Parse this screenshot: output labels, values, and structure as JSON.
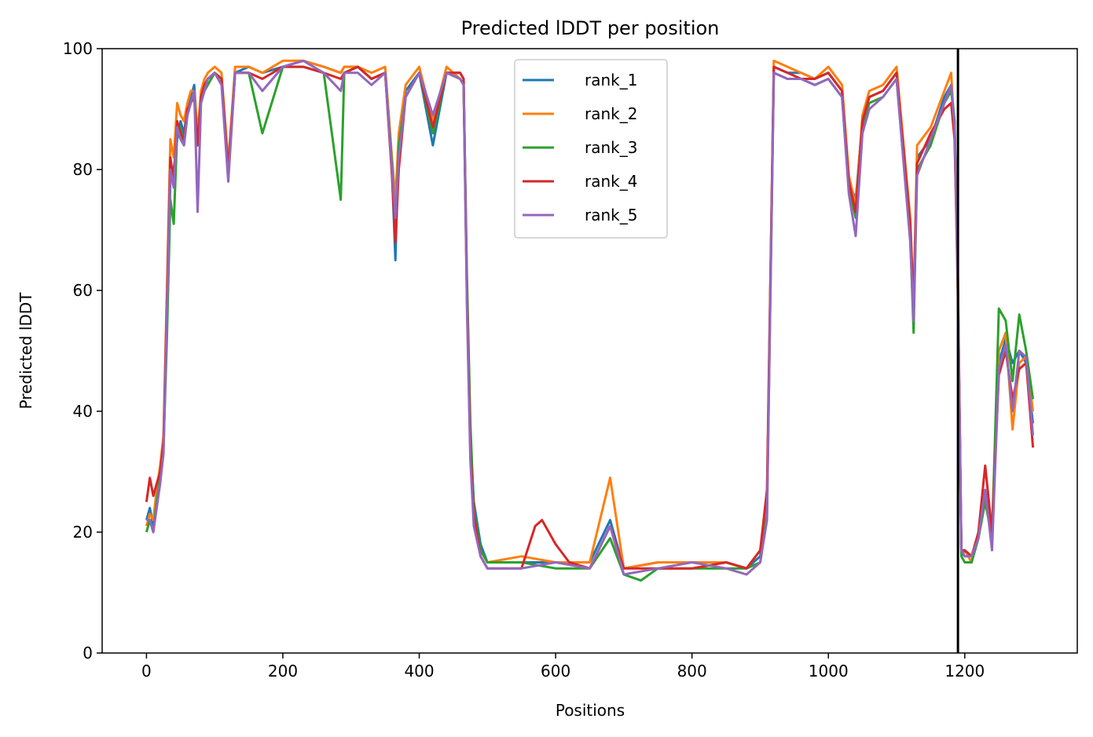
{
  "chart_data": {
    "type": "line",
    "title": "Predicted lDDT per position",
    "xlabel": "Positions",
    "ylabel": "Predicted lDDT",
    "xlim": [
      -65,
      1365
    ],
    "ylim": [
      0,
      100
    ],
    "xticks": [
      0,
      200,
      400,
      600,
      800,
      1000,
      1200
    ],
    "yticks": [
      0,
      20,
      40,
      60,
      80,
      100
    ],
    "grid": false,
    "legend_position": "top-center",
    "chain_break": 1190,
    "series": [
      {
        "name": "rank_1",
        "color": "#1f77b4",
        "x": [
          0,
          5,
          10,
          15,
          20,
          25,
          30,
          35,
          40,
          45,
          50,
          55,
          60,
          65,
          70,
          75,
          80,
          85,
          90,
          100,
          110,
          120,
          130,
          150,
          170,
          200,
          230,
          260,
          285,
          290,
          310,
          330,
          350,
          360,
          365,
          370,
          380,
          400,
          420,
          440,
          460,
          465,
          470,
          475,
          480,
          490,
          500,
          550,
          600,
          650,
          680,
          700,
          750,
          800,
          850,
          880,
          900,
          910,
          920,
          940,
          960,
          980,
          1000,
          1020,
          1030,
          1040,
          1050,
          1060,
          1080,
          1100,
          1120,
          1125,
          1130,
          1150,
          1170,
          1180,
          1185,
          1190,
          1195,
          1200,
          1210,
          1220,
          1230,
          1240,
          1250,
          1260,
          1270,
          1280,
          1290,
          1300
        ],
        "y": [
          22,
          24,
          21,
          26,
          30,
          35,
          55,
          78,
          80,
          85,
          88,
          86,
          90,
          92,
          94,
          85,
          92,
          94,
          95,
          96,
          95,
          80,
          96,
          97,
          96,
          97,
          98,
          97,
          96,
          97,
          97,
          95,
          96,
          80,
          65,
          85,
          93,
          96,
          84,
          96,
          96,
          95,
          60,
          35,
          25,
          18,
          15,
          15,
          15,
          15,
          22,
          14,
          15,
          15,
          15,
          14,
          16,
          25,
          97,
          96,
          96,
          95,
          96,
          93,
          78,
          75,
          88,
          92,
          93,
          96,
          70,
          56,
          82,
          85,
          92,
          94,
          88,
          60,
          16,
          17,
          16,
          19,
          26,
          20,
          48,
          52,
          48,
          50,
          48,
          38
        ]
      },
      {
        "name": "rank_2",
        "color": "#ff7f0e",
        "x": [
          0,
          5,
          10,
          15,
          20,
          25,
          30,
          35,
          40,
          45,
          50,
          55,
          60,
          65,
          70,
          75,
          80,
          85,
          90,
          100,
          110,
          120,
          130,
          150,
          170,
          200,
          230,
          260,
          285,
          290,
          310,
          330,
          350,
          360,
          365,
          370,
          380,
          400,
          420,
          440,
          460,
          465,
          470,
          475,
          480,
          490,
          500,
          550,
          600,
          650,
          680,
          700,
          750,
          800,
          850,
          880,
          900,
          910,
          920,
          940,
          960,
          980,
          1000,
          1020,
          1030,
          1040,
          1050,
          1060,
          1080,
          1100,
          1120,
          1125,
          1130,
          1150,
          1170,
          1180,
          1185,
          1190,
          1195,
          1200,
          1210,
          1220,
          1230,
          1240,
          1250,
          1260,
          1270,
          1280,
          1290,
          1300
        ],
        "y": [
          21,
          23,
          22,
          27,
          31,
          36,
          60,
          85,
          82,
          91,
          89,
          88,
          91,
          93,
          93,
          86,
          93,
          95,
          96,
          97,
          96,
          81,
          97,
          97,
          96,
          98,
          98,
          97,
          96,
          97,
          97,
          96,
          97,
          82,
          75,
          86,
          94,
          97,
          88,
          97,
          95,
          94,
          58,
          33,
          22,
          17,
          15,
          16,
          15,
          15,
          29,
          14,
          15,
          15,
          15,
          14,
          17,
          24,
          98,
          97,
          96,
          95,
          97,
          94,
          79,
          74,
          89,
          93,
          94,
          97,
          72,
          58,
          84,
          87,
          93,
          96,
          86,
          58,
          17,
          17,
          15,
          20,
          27,
          21,
          50,
          53,
          37,
          48,
          49,
          40
        ]
      },
      {
        "name": "rank_3",
        "color": "#2ca02c",
        "x": [
          0,
          5,
          10,
          15,
          20,
          25,
          30,
          35,
          40,
          45,
          50,
          55,
          60,
          65,
          70,
          75,
          80,
          85,
          90,
          100,
          110,
          120,
          130,
          150,
          170,
          200,
          230,
          260,
          285,
          290,
          310,
          330,
          350,
          360,
          365,
          370,
          380,
          400,
          420,
          440,
          460,
          465,
          470,
          475,
          480,
          490,
          500,
          550,
          600,
          650,
          680,
          700,
          725,
          750,
          800,
          850,
          880,
          900,
          910,
          920,
          940,
          960,
          980,
          1000,
          1020,
          1030,
          1040,
          1050,
          1060,
          1080,
          1100,
          1120,
          1125,
          1130,
          1150,
          1170,
          1180,
          1185,
          1190,
          1195,
          1200,
          1210,
          1220,
          1230,
          1240,
          1250,
          1260,
          1270,
          1280,
          1290,
          1300
        ],
        "y": [
          20,
          22,
          20,
          25,
          29,
          34,
          52,
          75,
          71,
          86,
          87,
          84,
          89,
          91,
          92,
          84,
          91,
          93,
          94,
          96,
          95,
          79,
          96,
          96,
          86,
          97,
          97,
          96,
          75,
          96,
          97,
          95,
          96,
          81,
          70,
          84,
          92,
          96,
          86,
          96,
          95,
          94,
          62,
          38,
          24,
          17,
          15,
          15,
          14,
          14,
          19,
          13,
          12,
          14,
          14,
          14,
          14,
          15,
          23,
          96,
          95,
          95,
          94,
          95,
          92,
          77,
          72,
          87,
          91,
          92,
          95,
          69,
          53,
          80,
          84,
          91,
          93,
          88,
          60,
          16,
          15,
          15,
          19,
          25,
          19,
          57,
          55,
          45,
          56,
          50,
          42
        ]
      },
      {
        "name": "rank_4",
        "color": "#d62728",
        "x": [
          0,
          5,
          10,
          15,
          20,
          25,
          30,
          35,
          40,
          45,
          50,
          55,
          60,
          65,
          70,
          75,
          80,
          85,
          90,
          100,
          110,
          120,
          130,
          150,
          170,
          200,
          230,
          260,
          285,
          290,
          310,
          330,
          350,
          360,
          365,
          370,
          380,
          400,
          420,
          440,
          460,
          465,
          470,
          475,
          480,
          490,
          500,
          550,
          570,
          580,
          600,
          620,
          650,
          680,
          700,
          750,
          800,
          850,
          880,
          900,
          910,
          920,
          940,
          960,
          980,
          1000,
          1020,
          1030,
          1040,
          1050,
          1060,
          1080,
          1100,
          1120,
          1125,
          1130,
          1150,
          1170,
          1180,
          1185,
          1190,
          1195,
          1200,
          1210,
          1220,
          1230,
          1240,
          1250,
          1260,
          1270,
          1280,
          1290,
          1300
        ],
        "y": [
          25,
          29,
          26,
          28,
          30,
          35,
          58,
          82,
          78,
          88,
          86,
          85,
          90,
          91,
          92,
          84,
          92,
          94,
          95,
          96,
          95,
          80,
          96,
          96,
          95,
          97,
          97,
          96,
          95,
          96,
          97,
          95,
          96,
          79,
          68,
          80,
          92,
          96,
          87,
          96,
          96,
          95,
          59,
          34,
          23,
          16,
          14,
          14,
          21,
          22,
          18,
          15,
          14,
          21,
          14,
          14,
          14,
          15,
          14,
          17,
          27,
          97,
          96,
          95,
          95,
          96,
          93,
          78,
          73,
          88,
          92,
          93,
          96,
          71,
          57,
          81,
          86,
          90,
          91,
          85,
          62,
          17,
          17,
          16,
          20,
          31,
          20,
          46,
          50,
          42,
          47,
          48,
          34
        ]
      },
      {
        "name": "rank_5",
        "color": "#9467bd",
        "x": [
          0,
          5,
          10,
          15,
          20,
          25,
          30,
          35,
          40,
          45,
          50,
          55,
          60,
          65,
          70,
          75,
          80,
          85,
          90,
          100,
          110,
          120,
          130,
          150,
          170,
          200,
          230,
          260,
          285,
          290,
          310,
          330,
          350,
          360,
          365,
          370,
          380,
          400,
          420,
          440,
          460,
          465,
          470,
          475,
          480,
          490,
          500,
          550,
          600,
          650,
          680,
          700,
          750,
          800,
          850,
          880,
          900,
          910,
          920,
          940,
          960,
          980,
          1000,
          1020,
          1030,
          1040,
          1050,
          1060,
          1080,
          1100,
          1120,
          1125,
          1130,
          1150,
          1170,
          1180,
          1185,
          1190,
          1195,
          1200,
          1210,
          1220,
          1230,
          1240,
          1250,
          1260,
          1270,
          1280,
          1290,
          1300
        ],
        "y": [
          22,
          22,
          20,
          24,
          28,
          33,
          56,
          80,
          77,
          87,
          85,
          84,
          89,
          91,
          93,
          73,
          91,
          93,
          95,
          96,
          94,
          78,
          96,
          96,
          93,
          97,
          98,
          96,
          93,
          96,
          96,
          94,
          96,
          80,
          72,
          82,
          92,
          96,
          89,
          96,
          95,
          94,
          57,
          32,
          21,
          16,
          14,
          14,
          15,
          14,
          21,
          13,
          14,
          15,
          14,
          13,
          15,
          22,
          96,
          95,
          95,
          94,
          95,
          92,
          76,
          69,
          86,
          90,
          92,
          95,
          68,
          55,
          79,
          85,
          91,
          94,
          87,
          59,
          17,
          16,
          16,
          19,
          27,
          17,
          47,
          51,
          40,
          50,
          49,
          36
        ]
      }
    ]
  }
}
